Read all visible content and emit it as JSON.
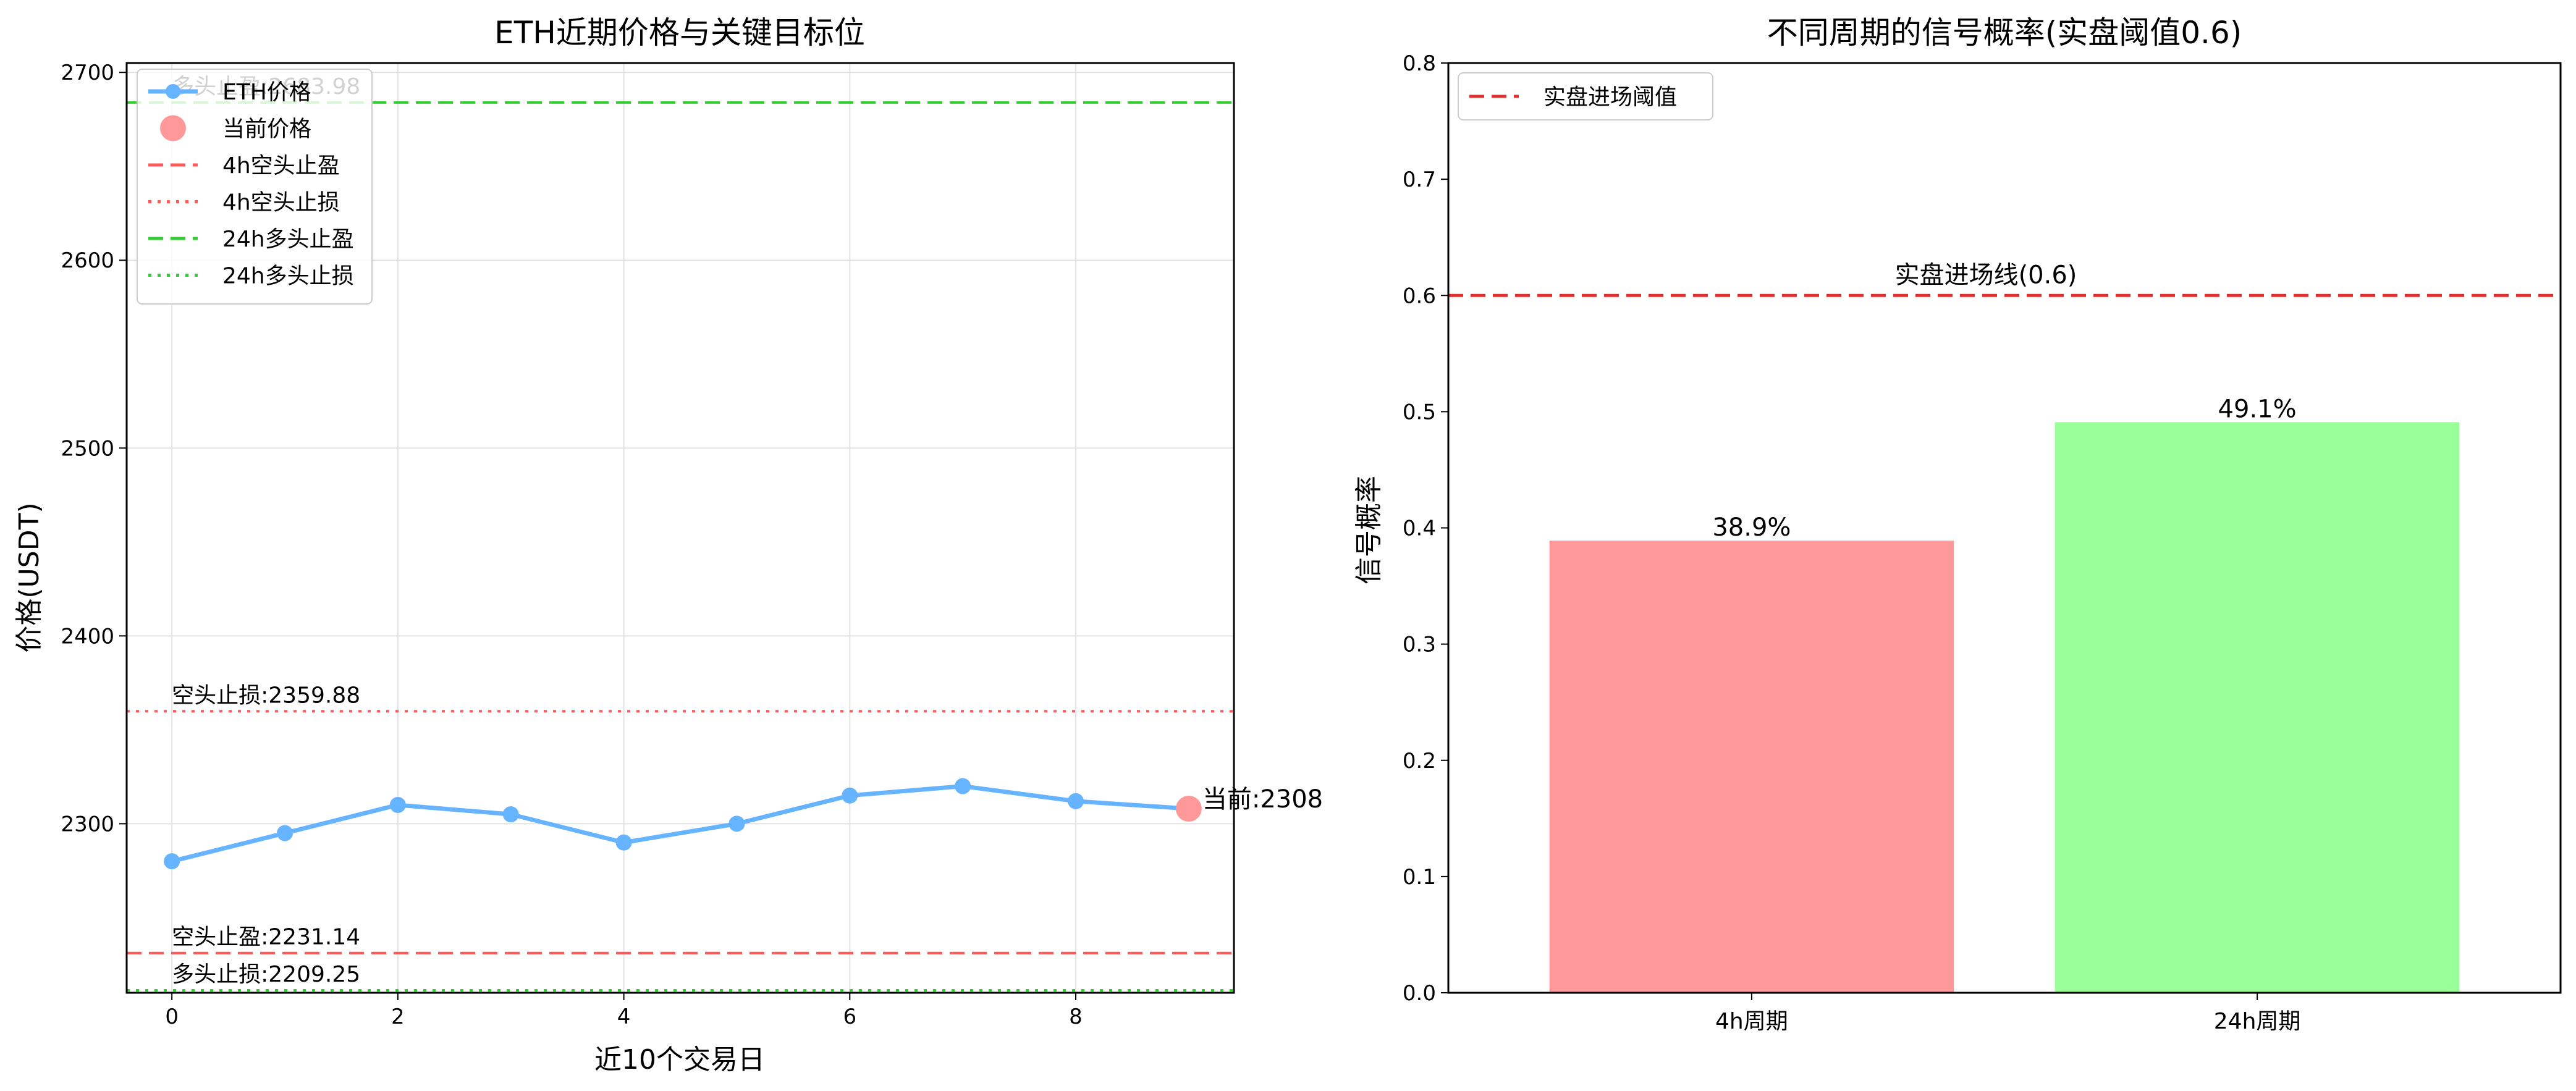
{
  "chart_data": [
    {
      "type": "line",
      "title": "ETH近期价格与关键目标位",
      "xlabel": "近10个交易日",
      "ylabel": "价格(USDT)",
      "xlim": [
        -0.4,
        9.4
      ],
      "ylim": [
        2210,
        2705
      ],
      "x_ticks": [
        "0",
        "2",
        "4",
        "6",
        "8"
      ],
      "y_ticks": [
        "2300",
        "2400",
        "2500",
        "2600",
        "2700"
      ],
      "grid": true,
      "legend_position": "top-left",
      "series": [
        {
          "name": "ETH价格",
          "color": "#66b3ff",
          "x": [
            0,
            1,
            2,
            3,
            4,
            5,
            6,
            7,
            8,
            9
          ],
          "values": [
            2280,
            2295,
            2310,
            2305,
            2290,
            2300,
            2315,
            2320,
            2312,
            2308
          ]
        }
      ],
      "current_price": {
        "legend": "当前价格",
        "x": 9,
        "value": 2308,
        "label": "当前:2308",
        "color": "#ff9999"
      },
      "levels": [
        {
          "legend": "4h空头止盈",
          "value": 2231.14,
          "label": "空头止盈:2231.14",
          "style": "dashed",
          "color": "#ff5a5a"
        },
        {
          "legend": "4h空头止损",
          "value": 2359.88,
          "label": "空头止损:2359.88",
          "style": "dotted",
          "color": "#ff5a5a"
        },
        {
          "legend": "24h多头止盈",
          "value": 2683.98,
          "label": "多头止盈:2683.98",
          "style": "dashed",
          "color": "#33cc33"
        },
        {
          "legend": "24h多头止损",
          "value": 2209.25,
          "label": "多头止损:2209.25",
          "style": "dotted",
          "color": "#33cc33"
        }
      ]
    },
    {
      "type": "bar",
      "title": "不同周期的信号概率(实盘阈值0.6)",
      "xlabel": "",
      "ylabel": "信号概率",
      "categories": [
        "4h周期",
        "24h周期"
      ],
      "values": [
        0.389,
        0.491
      ],
      "value_labels": [
        "38.9%",
        "49.1%"
      ],
      "colors": [
        "#ff9999",
        "#99ff99"
      ],
      "ylim": [
        0,
        0.8
      ],
      "y_ticks": [
        "0.0",
        "0.1",
        "0.2",
        "0.3",
        "0.4",
        "0.5",
        "0.6",
        "0.7",
        "0.8"
      ],
      "grid": false,
      "legend_position": "top-left",
      "threshold": {
        "value": 0.6,
        "legend": "实盘进场阈值",
        "label": "实盘进场线(0.6)",
        "color": "#e03030",
        "style": "dashed"
      }
    }
  ]
}
